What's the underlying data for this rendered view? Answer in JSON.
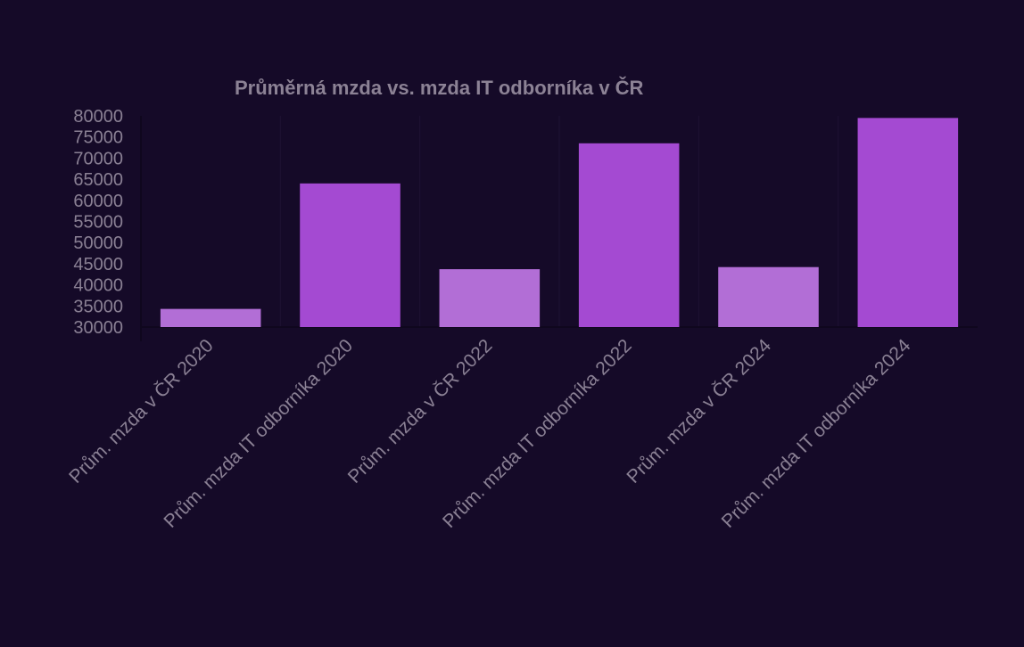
{
  "chart_data": {
    "type": "bar",
    "title": "Průměrná mzda vs. mzda IT odborníka v ČR",
    "xlabel": "",
    "ylabel": "",
    "categories": [
      "Prům. mzda v ČR 2020",
      "Prům. mzda IT odborníka 2020",
      "Prům. mzda v ČR 2022",
      "Prům. mzda IT odborníka 2022",
      "Prům. mzda v ČR 2024",
      "Prům. mzda IT odborníka 2024"
    ],
    "values": [
      34300,
      64000,
      43700,
      73500,
      44200,
      79500
    ],
    "ylim": [
      30000,
      80000
    ],
    "yticks": [
      30000,
      35000,
      40000,
      45000,
      50000,
      55000,
      60000,
      65000,
      70000,
      75000,
      80000
    ],
    "grid": true,
    "legend": "none",
    "colors": {
      "average_bar": "#b26ed6",
      "it_bar": "#a44ad2",
      "background": "#150a28",
      "text": "#8a8094"
    }
  }
}
